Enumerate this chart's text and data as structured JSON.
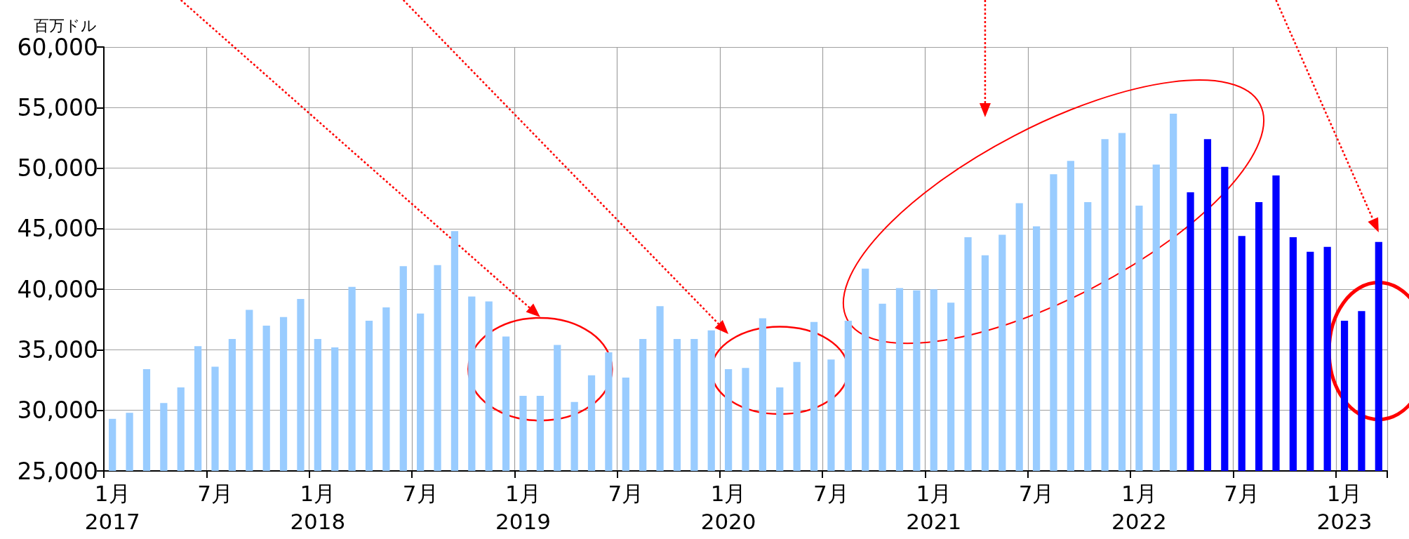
{
  "chart_data": {
    "type": "bar",
    "ylabel": "百万ドル",
    "categories": [
      "1月\n2017",
      null,
      null,
      null,
      null,
      null,
      "7月",
      null,
      null,
      null,
      null,
      null,
      "1月\n2018",
      null,
      null,
      null,
      null,
      null,
      "7月",
      null,
      null,
      null,
      null,
      null,
      "1月\n2019",
      null,
      null,
      null,
      null,
      null,
      "7月",
      null,
      null,
      null,
      null,
      null,
      "1月\n2020",
      null,
      null,
      null,
      null,
      null,
      "7月",
      null,
      null,
      null,
      null,
      null,
      "1月\n2021",
      null,
      null,
      null,
      null,
      null,
      "7月",
      null,
      null,
      null,
      null,
      null,
      "1月\n2022",
      null,
      null,
      null,
      null,
      null,
      "7月",
      null,
      null,
      null,
      null,
      null,
      "1月\n2023",
      null,
      null
    ],
    "values": [
      29300,
      29800,
      33400,
      30600,
      31900,
      35300,
      33600,
      35900,
      38300,
      37000,
      37700,
      39200,
      35900,
      35200,
      40200,
      37400,
      38500,
      41900,
      38000,
      42000,
      44800,
      39400,
      39000,
      36100,
      31200,
      31200,
      35400,
      30700,
      32900,
      34800,
      32700,
      35900,
      38600,
      35900,
      35900,
      36600,
      33400,
      33500,
      37600,
      31900,
      34000,
      37300,
      34200,
      37400,
      41700,
      38800,
      40100,
      39900,
      40000,
      38900,
      44300,
      42800,
      44500,
      47100,
      45200,
      49500,
      50600,
      47200,
      52400,
      52900,
      46900,
      50300,
      54500,
      48000,
      52400,
      50100,
      44400,
      47200,
      49400,
      44300,
      43100,
      43500,
      37400,
      38200,
      43900
    ],
    "colors": [
      "#99ccff",
      "#99ccff",
      "#99ccff",
      "#99ccff",
      "#99ccff",
      "#99ccff",
      "#99ccff",
      "#99ccff",
      "#99ccff",
      "#99ccff",
      "#99ccff",
      "#99ccff",
      "#99ccff",
      "#99ccff",
      "#99ccff",
      "#99ccff",
      "#99ccff",
      "#99ccff",
      "#99ccff",
      "#99ccff",
      "#99ccff",
      "#99ccff",
      "#99ccff",
      "#99ccff",
      "#99ccff",
      "#99ccff",
      "#99ccff",
      "#99ccff",
      "#99ccff",
      "#99ccff",
      "#99ccff",
      "#99ccff",
      "#99ccff",
      "#99ccff",
      "#99ccff",
      "#99ccff",
      "#99ccff",
      "#99ccff",
      "#99ccff",
      "#99ccff",
      "#99ccff",
      "#99ccff",
      "#99ccff",
      "#99ccff",
      "#99ccff",
      "#99ccff",
      "#99ccff",
      "#99ccff",
      "#99ccff",
      "#99ccff",
      "#99ccff",
      "#99ccff",
      "#99ccff",
      "#99ccff",
      "#99ccff",
      "#99ccff",
      "#99ccff",
      "#99ccff",
      "#99ccff",
      "#99ccff",
      "#99ccff",
      "#99ccff",
      "#99ccff",
      "#0000ff",
      "#0000ff",
      "#0000ff",
      "#0000ff",
      "#0000ff",
      "#0000ff",
      "#0000ff",
      "#0000ff",
      "#0000ff",
      "#0000ff",
      "#0000ff",
      "#0000ff"
    ],
    "ylim": [
      25000,
      60000
    ],
    "yticks": [
      {
        "value": 25000,
        "label": "25,000"
      },
      {
        "value": 30000,
        "label": "30,000"
      },
      {
        "value": 35000,
        "label": "35,000"
      },
      {
        "value": 40000,
        "label": "40,000"
      },
      {
        "value": 45000,
        "label": "45,000"
      },
      {
        "value": 50000,
        "label": "50,000"
      },
      {
        "value": 55000,
        "label": "55,000"
      },
      {
        "value": 60000,
        "label": "60,000"
      }
    ],
    "grid": true
  }
}
